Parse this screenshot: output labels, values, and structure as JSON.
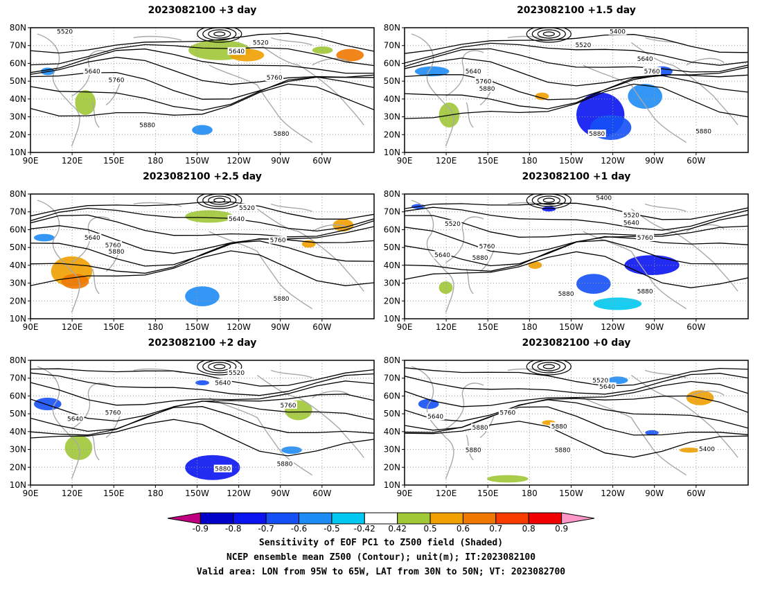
{
  "panels": [
    {
      "title": "2023082100 +3 day",
      "contour_labels": [
        "5520",
        "5520",
        "5640",
        "5640",
        "5760",
        "5760",
        "5880",
        "5880"
      ]
    },
    {
      "title": "2023082100 +1.5 day",
      "contour_labels": [
        "5400",
        "5520",
        "5640",
        "5640",
        "5760",
        "5760",
        "5880",
        "5880",
        "5880"
      ]
    },
    {
      "title": "2023082100 +2.5 day",
      "contour_labels": [
        "5520",
        "5640",
        "5640",
        "5760",
        "5760",
        "5880",
        "5880"
      ]
    },
    {
      "title": "2023082100 +1 day",
      "contour_labels": [
        "5400",
        "5520",
        "5520",
        "5640",
        "5640",
        "5760",
        "5760",
        "5880",
        "5880",
        "5880"
      ]
    },
    {
      "title": "2023082100 +2 day",
      "contour_labels": [
        "5520",
        "5640",
        "5640",
        "5760",
        "5760",
        "5880",
        "5880"
      ]
    },
    {
      "title": "2023082100 +0 day",
      "contour_labels": [
        "5520",
        "5640",
        "5640",
        "5760",
        "5880",
        "5880",
        "5880",
        "5880",
        "5400"
      ]
    }
  ],
  "lat_ticks": [
    "80N",
    "70N",
    "60N",
    "50N",
    "40N",
    "30N",
    "20N",
    "10N"
  ],
  "lon_ticks": [
    "90E",
    "120E",
    "150E",
    "180",
    "150W",
    "120W",
    "90W",
    "60W"
  ],
  "colorbar": {
    "labels": [
      "-0.9",
      "-0.8",
      "-0.7",
      "-0.6",
      "-0.5",
      "-0.42",
      "0.42",
      "0.5",
      "0.6",
      "0.7",
      "0.8",
      "0.9"
    ],
    "colors": [
      "#c0007f",
      "#0000c8",
      "#0a14f0",
      "#1450f5",
      "#1e8cf5",
      "#00c8f0",
      "#ffffff",
      "#a0c837",
      "#f0a000",
      "#f07800",
      "#fa3c00",
      "#f00000",
      "#ff96c8"
    ]
  },
  "caption": {
    "line1": "Sensitivity of EOF PC1 to Z500 field (Shaded)",
    "line2": "NCEP ensemble mean Z500 (Contour); unit(m); IT:2023082100",
    "line3": "Valid area: LON from 95W to 65W, LAT from 30N to 50N; VT: 2023082700"
  }
}
